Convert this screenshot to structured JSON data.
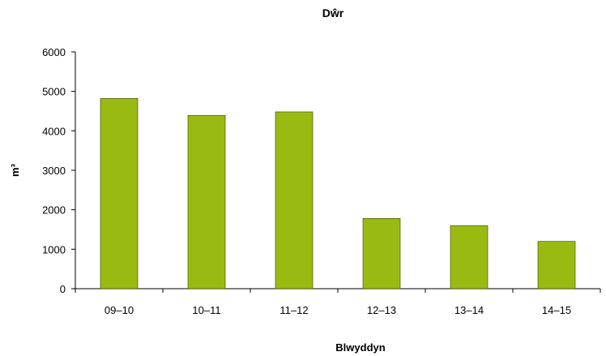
{
  "chart_data": {
    "type": "bar",
    "title": "Dŵr",
    "xlabel": "Blwyddyn",
    "ylabel": "m³",
    "categories": [
      "09–10",
      "10–11",
      "11–12",
      "12–13",
      "13–14",
      "14–15"
    ],
    "values": [
      4820,
      4390,
      4480,
      1780,
      1600,
      1200
    ],
    "ylim": [
      0,
      6000
    ],
    "yticks": [
      0,
      1000,
      2000,
      3000,
      4000,
      5000,
      6000
    ],
    "grid": false,
    "legend": "none",
    "bar_color": "#99bb11"
  }
}
